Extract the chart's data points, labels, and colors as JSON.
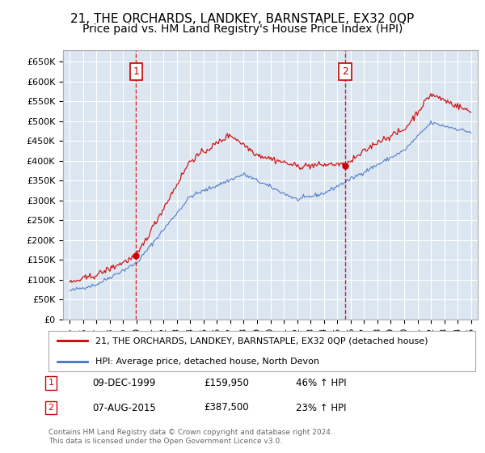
{
  "title": "21, THE ORCHARDS, LANDKEY, BARNSTAPLE, EX32 0QP",
  "subtitle": "Price paid vs. HM Land Registry's House Price Index (HPI)",
  "background_color": "#ffffff",
  "plot_bg_color": "#dce6f1",
  "grid_color": "#ffffff",
  "ylim": [
    0,
    680000
  ],
  "yticks": [
    0,
    50000,
    100000,
    150000,
    200000,
    250000,
    300000,
    350000,
    400000,
    450000,
    500000,
    550000,
    600000,
    650000
  ],
  "ytick_labels": [
    "£0",
    "£50K",
    "£100K",
    "£150K",
    "£200K",
    "£250K",
    "£300K",
    "£350K",
    "£400K",
    "£450K",
    "£500K",
    "£550K",
    "£600K",
    "£650K"
  ],
  "sale1_date": 1999.95,
  "sale1_price": 159950,
  "sale1_label": "09-DEC-1999",
  "sale1_amount": "£159,950",
  "sale1_hpi": "46% ↑ HPI",
  "sale2_date": 2015.58,
  "sale2_price": 387500,
  "sale2_label": "07-AUG-2015",
  "sale2_amount": "£387,500",
  "sale2_hpi": "23% ↑ HPI",
  "legend_line1": "21, THE ORCHARDS, LANDKEY, BARNSTAPLE, EX32 0QP (detached house)",
  "legend_line2": "HPI: Average price, detached house, North Devon",
  "footnote1": "Contains HM Land Registry data © Crown copyright and database right 2024.",
  "footnote2": "This data is licensed under the Open Government Licence v3.0.",
  "red_color": "#cc0000",
  "blue_color": "#4472c4",
  "title_fontsize": 11,
  "subtitle_fontsize": 10
}
